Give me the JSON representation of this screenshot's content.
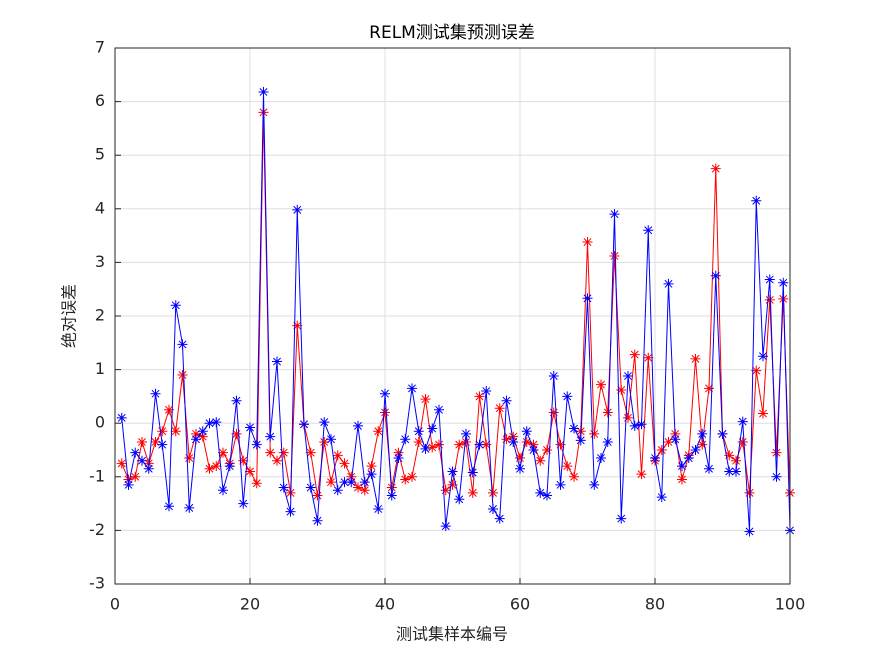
{
  "chart_data": {
    "type": "line",
    "title": "RELM测试集预测误差",
    "xlabel": "测试集样本编号",
    "ylabel": "绝对误差",
    "x": [
      1,
      2,
      3,
      4,
      5,
      6,
      7,
      8,
      9,
      10,
      11,
      12,
      13,
      14,
      15,
      16,
      17,
      18,
      19,
      20,
      21,
      22,
      23,
      24,
      25,
      26,
      27,
      28,
      29,
      30,
      31,
      32,
      33,
      34,
      35,
      36,
      37,
      38,
      39,
      40,
      41,
      42,
      43,
      44,
      45,
      46,
      47,
      48,
      49,
      50,
      51,
      52,
      53,
      54,
      55,
      56,
      57,
      58,
      59,
      60,
      61,
      62,
      63,
      64,
      65,
      66,
      67,
      68,
      69,
      70,
      71,
      72,
      73,
      74,
      75,
      76,
      77,
      78,
      79,
      80,
      81,
      82,
      83,
      84,
      85,
      86,
      87,
      88,
      89,
      90,
      91,
      92,
      93,
      94,
      95,
      96,
      97,
      98,
      99,
      100
    ],
    "series": [
      {
        "color": "#ff0000",
        "marker": "*",
        "values": [
          -0.75,
          -1.05,
          -1.0,
          -0.35,
          -0.75,
          -0.35,
          -0.15,
          0.25,
          -0.15,
          0.9,
          -0.65,
          -0.2,
          -0.25,
          -0.85,
          -0.8,
          -0.55,
          -0.75,
          -0.2,
          -0.7,
          -0.9,
          -1.12,
          5.8,
          -0.55,
          -0.7,
          -0.55,
          -1.3,
          1.82,
          -0.02,
          -0.55,
          -1.35,
          -0.35,
          -1.1,
          -0.6,
          -0.75,
          -1.0,
          -1.2,
          -1.25,
          -0.8,
          -0.15,
          0.2,
          -1.2,
          -0.55,
          -1.05,
          -1.0,
          -0.35,
          0.45,
          -0.45,
          -0.4,
          -1.25,
          -1.15,
          -0.4,
          -0.35,
          -1.3,
          0.5,
          -0.4,
          -1.3,
          0.28,
          -0.3,
          -0.25,
          -0.65,
          -0.35,
          -0.4,
          -0.7,
          -0.5,
          0.2,
          -0.4,
          -0.8,
          -1.0,
          -0.15,
          3.38,
          -0.2,
          0.72,
          0.2,
          3.12,
          0.62,
          0.1,
          1.28,
          -0.95,
          1.22,
          -0.7,
          -0.5,
          -0.35,
          -0.2,
          -1.05,
          -0.6,
          1.2,
          -0.4,
          0.65,
          4.75,
          -0.2,
          -0.6,
          -0.7,
          -0.35,
          -1.3,
          0.98,
          0.18,
          2.3,
          -0.55,
          2.32,
          -1.3
        ]
      },
      {
        "color": "#0000ff",
        "marker": "*",
        "values": [
          0.1,
          -1.15,
          -0.55,
          -0.7,
          -0.85,
          0.55,
          -0.4,
          -1.55,
          2.2,
          1.47,
          -1.58,
          -0.3,
          -0.15,
          0.0,
          0.02,
          -1.25,
          -0.8,
          0.42,
          -1.5,
          -0.08,
          -0.4,
          6.18,
          -0.25,
          1.15,
          -1.2,
          -1.65,
          3.98,
          -0.02,
          -1.2,
          -1.82,
          0.02,
          -0.3,
          -1.25,
          -1.1,
          -1.1,
          -0.05,
          -1.1,
          -0.95,
          -1.6,
          0.55,
          -1.35,
          -0.65,
          -0.3,
          0.65,
          -0.15,
          -0.48,
          -0.1,
          0.25,
          -1.92,
          -0.9,
          -1.42,
          -0.2,
          -0.92,
          -0.4,
          0.6,
          -1.6,
          -1.78,
          0.42,
          -0.35,
          -0.85,
          -0.15,
          -0.5,
          -1.3,
          -1.35,
          0.88,
          -1.15,
          0.5,
          -0.1,
          -0.32,
          2.33,
          -1.15,
          -0.65,
          -0.35,
          3.9,
          -1.78,
          0.88,
          -0.05,
          -0.02,
          3.6,
          -0.65,
          -1.38,
          2.6,
          -0.3,
          -0.8,
          -0.65,
          -0.5,
          -0.2,
          -0.85,
          2.75,
          -0.2,
          -0.9,
          -0.9,
          0.03,
          -2.02,
          4.15,
          1.25,
          2.68,
          -1.0,
          2.62,
          -2.0
        ]
      }
    ],
    "xlim": [
      0,
      100
    ],
    "xticks": [
      0,
      20,
      40,
      60,
      80,
      100
    ],
    "ylim": [
      -3,
      7
    ],
    "yticks": [
      -3,
      -2,
      -1,
      0,
      1,
      2,
      3,
      4,
      5,
      6,
      7
    ],
    "grid": true
  }
}
